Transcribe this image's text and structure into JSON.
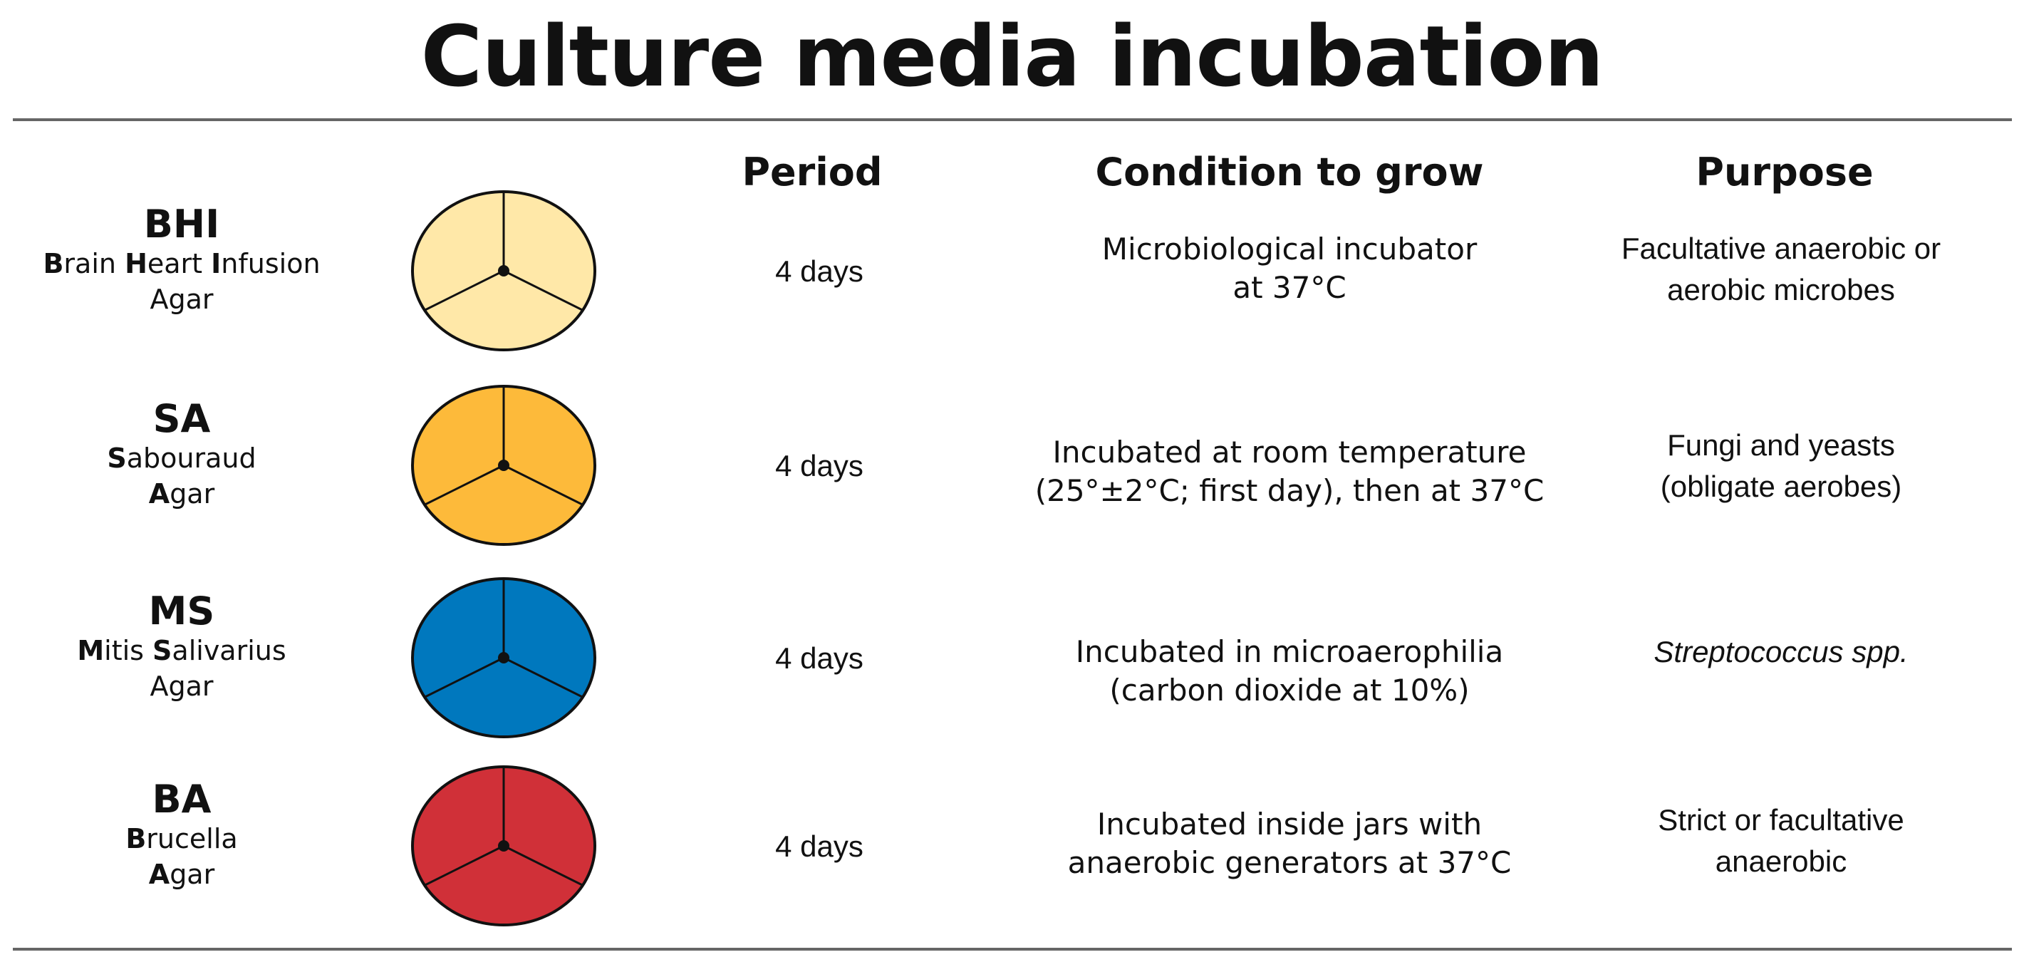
{
  "title": "Culture media incubation",
  "columns": {
    "period": "Period",
    "condition": "Condition to grow",
    "purpose": "Purpose"
  },
  "rows": [
    {
      "abbr": "BHI",
      "name_parts": [
        {
          "t": "B",
          "b": true
        },
        {
          "t": "rain ",
          "b": false
        },
        {
          "t": "H",
          "b": true
        },
        {
          "t": "eart ",
          "b": false
        },
        {
          "t": "I",
          "b": true
        },
        {
          "t": "nfusion",
          "b": false
        }
      ],
      "name_line2": "Agar",
      "plate_color": "#FFE8A8",
      "period": "4 days",
      "condition": [
        "Microbiological incubator",
        "at 37°C"
      ],
      "purpose": [
        "Facultative anaerobic or",
        "aerobic microbes"
      ],
      "purpose_italic": false
    },
    {
      "abbr": "SA",
      "name_parts": [
        {
          "t": "S",
          "b": true
        },
        {
          "t": "abouraud",
          "b": false
        }
      ],
      "name_line2_bold": "A",
      "name_line2": "gar",
      "plate_color": "#FDBA3A",
      "period": "4 days",
      "condition": [
        "Incubated at room temperature",
        "(25°±2°C; first day), then at 37°C"
      ],
      "purpose": [
        "Fungi and yeasts",
        "(obligate aerobes)"
      ],
      "purpose_italic": false
    },
    {
      "abbr": "MS",
      "name_parts": [
        {
          "t": "M",
          "b": true
        },
        {
          "t": "itis ",
          "b": false
        },
        {
          "t": "S",
          "b": true
        },
        {
          "t": "alivarius",
          "b": false
        }
      ],
      "name_line2": "Agar",
      "plate_color": "#0078BE",
      "period": "4 days",
      "condition": [
        "Incubated in microaerophilia",
        "(carbon dioxide at 10%)"
      ],
      "purpose": [
        "Streptococcus spp."
      ],
      "purpose_italic": true
    },
    {
      "abbr": "BA",
      "name_parts": [
        {
          "t": "B",
          "b": true
        },
        {
          "t": "rucella",
          "b": false
        }
      ],
      "name_line2_bold": "A",
      "name_line2": "gar",
      "plate_color": "#D03038",
      "period": "4 days",
      "condition": [
        "Incubated inside jars with",
        "anaerobic generators at 37°C"
      ],
      "purpose": [
        "Strict or facultative",
        "anaerobic"
      ],
      "purpose_italic": false
    }
  ]
}
